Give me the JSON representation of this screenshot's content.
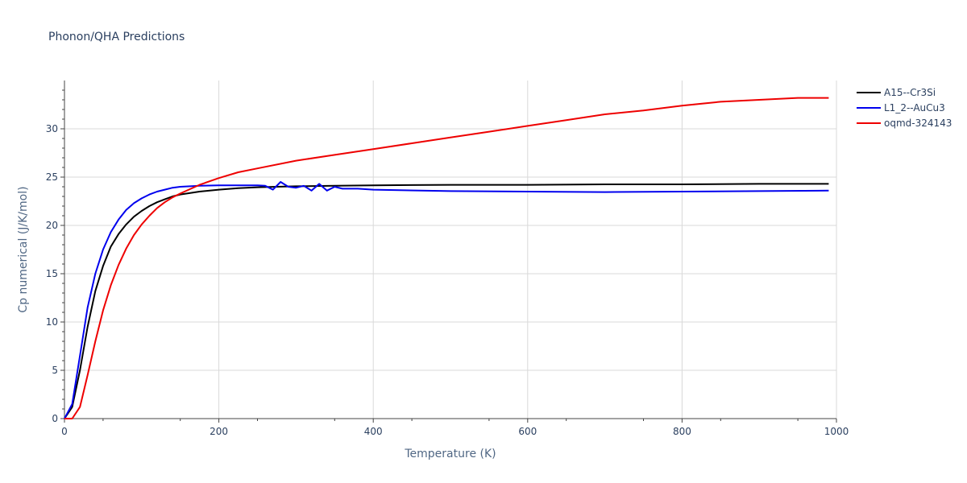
{
  "chart_data": {
    "type": "line",
    "title": "Phonon/QHA Predictions",
    "xlabel": "Temperature (K)",
    "ylabel": "Cp numerical (J/K/mol)",
    "xlim": [
      0,
      1000
    ],
    "ylim": [
      0,
      35
    ],
    "xticks": [
      0,
      200,
      400,
      600,
      800,
      1000
    ],
    "yticks": [
      0,
      5,
      10,
      15,
      20,
      25,
      30
    ],
    "grid": true,
    "legend_position": "top-right",
    "series": [
      {
        "name": "A15--Cr3Si",
        "color": "#000000",
        "x": [
          0,
          10,
          20,
          30,
          40,
          50,
          60,
          70,
          80,
          90,
          100,
          110,
          120,
          130,
          140,
          150,
          175,
          200,
          225,
          250,
          300,
          350,
          400,
          500,
          600,
          700,
          800,
          900,
          990
        ],
        "y": [
          0,
          1.2,
          5.0,
          9.5,
          13.2,
          15.8,
          17.8,
          19.1,
          20.1,
          20.9,
          21.5,
          22.0,
          22.4,
          22.7,
          23.0,
          23.2,
          23.5,
          23.7,
          23.85,
          23.95,
          24.05,
          24.1,
          24.15,
          24.2,
          24.2,
          24.25,
          24.25,
          24.3,
          24.3
        ]
      },
      {
        "name": "L1_2--AuCu3",
        "color": "#0000ee",
        "x": [
          0,
          10,
          20,
          30,
          40,
          50,
          60,
          70,
          80,
          90,
          100,
          110,
          120,
          130,
          140,
          150,
          175,
          200,
          225,
          250,
          260,
          270,
          280,
          290,
          300,
          310,
          320,
          330,
          340,
          350,
          360,
          380,
          400,
          500,
          600,
          700,
          800,
          900,
          990
        ],
        "y": [
          0,
          1.5,
          6.5,
          11.5,
          15.0,
          17.5,
          19.3,
          20.6,
          21.6,
          22.3,
          22.8,
          23.2,
          23.5,
          23.7,
          23.9,
          24.0,
          24.1,
          24.15,
          24.15,
          24.15,
          24.1,
          23.7,
          24.5,
          24.0,
          23.9,
          24.1,
          23.6,
          24.3,
          23.6,
          24.0,
          23.8,
          23.8,
          23.7,
          23.55,
          23.5,
          23.45,
          23.5,
          23.55,
          23.6
        ]
      },
      {
        "name": "oqmd-324143",
        "color": "#ee0000",
        "x": [
          0,
          10,
          20,
          30,
          40,
          50,
          60,
          70,
          80,
          90,
          100,
          110,
          120,
          130,
          140,
          150,
          175,
          200,
          225,
          250,
          300,
          350,
          400,
          450,
          500,
          550,
          600,
          650,
          700,
          750,
          800,
          850,
          900,
          950,
          990
        ],
        "y": [
          0,
          0,
          1.2,
          4.5,
          8.0,
          11.2,
          13.8,
          15.9,
          17.6,
          19.0,
          20.1,
          21.0,
          21.8,
          22.4,
          22.9,
          23.3,
          24.2,
          24.9,
          25.5,
          25.9,
          26.7,
          27.3,
          27.9,
          28.5,
          29.1,
          29.7,
          30.3,
          30.9,
          31.5,
          31.9,
          32.4,
          32.8,
          33.0,
          33.2,
          33.2
        ]
      }
    ]
  }
}
